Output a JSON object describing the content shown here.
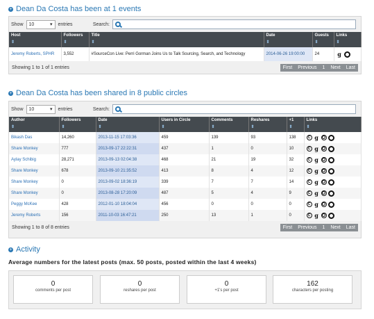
{
  "events": {
    "title": "Dean Da Costa has been at 1 events",
    "show_label": "Show",
    "entries_value": "10",
    "entries_label": "entries",
    "search_label": "Search:",
    "columns": [
      "Host",
      "Followers",
      "Title",
      "Date",
      "Guests",
      "Links"
    ],
    "rows": [
      {
        "host": "Jeremy Roberts, SPHR",
        "followers": "3,552",
        "title": "#SourceCon Live: Perri Gorman Joins Us to Talk Sourcing, Search, and Technology",
        "date": "2014-06-26 19:00:00",
        "guests": "24"
      }
    ],
    "info": "Showing 1 to 1 of 1 entries",
    "pager": [
      "First",
      "Previous",
      "1",
      "Next",
      "Last"
    ]
  },
  "circles": {
    "title": "Dean Da Costa has been shared in 8 public circles",
    "show_label": "Show",
    "entries_value": "10",
    "entries_label": "entries",
    "search_label": "Search:",
    "columns": [
      "Author",
      "Followers",
      "Date",
      "Users in Circle",
      "Comments",
      "Reshares",
      "+1",
      "Links"
    ],
    "rows": [
      {
        "author": "Bikash Das",
        "followers": "14,260",
        "date": "2013-11-15 17:03:36",
        "users": "459",
        "comments": "139",
        "reshares": "93",
        "plus": "138"
      },
      {
        "author": "Share Monkey",
        "followers": "777",
        "date": "2013-09-17 22:22:31",
        "users": "437",
        "comments": "1",
        "reshares": "0",
        "plus": "10"
      },
      {
        "author": "Aylay Schibig",
        "followers": "28,271",
        "date": "2013-09-13 02:04:38",
        "users": "468",
        "comments": "21",
        "reshares": "19",
        "plus": "32"
      },
      {
        "author": "Share Monkey",
        "followers": "678",
        "date": "2013-09-10 21:35:52",
        "users": "413",
        "comments": "8",
        "reshares": "4",
        "plus": "12"
      },
      {
        "author": "Share Monkey",
        "followers": "0",
        "date": "2013-09-02 18:36:19",
        "users": "339",
        "comments": "7",
        "reshares": "7",
        "plus": "14"
      },
      {
        "author": "Share Monkey",
        "followers": "0",
        "date": "2013-08-28 17:20:09",
        "users": "487",
        "comments": "5",
        "reshares": "4",
        "plus": "9"
      },
      {
        "author": "Peggy McKee",
        "followers": "428",
        "date": "2012-01-10 18:04:04",
        "users": "456",
        "comments": "0",
        "reshares": "0",
        "plus": "0"
      },
      {
        "author": "Jeremy Roberts",
        "followers": "156",
        "date": "2011-10-03 16:47:21",
        "users": "250",
        "comments": "13",
        "reshares": "1",
        "plus": "0"
      }
    ],
    "info": "Showing 1 to 8 of 8 entries",
    "pager": [
      "First",
      "Previous",
      "1",
      "Next",
      "Last"
    ]
  },
  "activity": {
    "title": "Activity",
    "subtitle": "Average numbers for the latest posts (max. 50 posts, posted within the last 4 weeks)",
    "stats": [
      {
        "value": "0",
        "label": "comments per post"
      },
      {
        "value": "0",
        "label": "reshares per post"
      },
      {
        "value": "0",
        "label": "+1's per post"
      },
      {
        "value": "162",
        "label": "characters per posting"
      }
    ]
  },
  "icons": {
    "bullet": "plus-circle-icon",
    "search": "search-icon",
    "links": [
      "circlecount-icon",
      "google-plus-icon",
      "circle-share-icon",
      "swirl-icon"
    ]
  },
  "colors": {
    "accent": "#2a78b4",
    "header": "#444a4f",
    "date_cell": "#dfe7f6"
  }
}
